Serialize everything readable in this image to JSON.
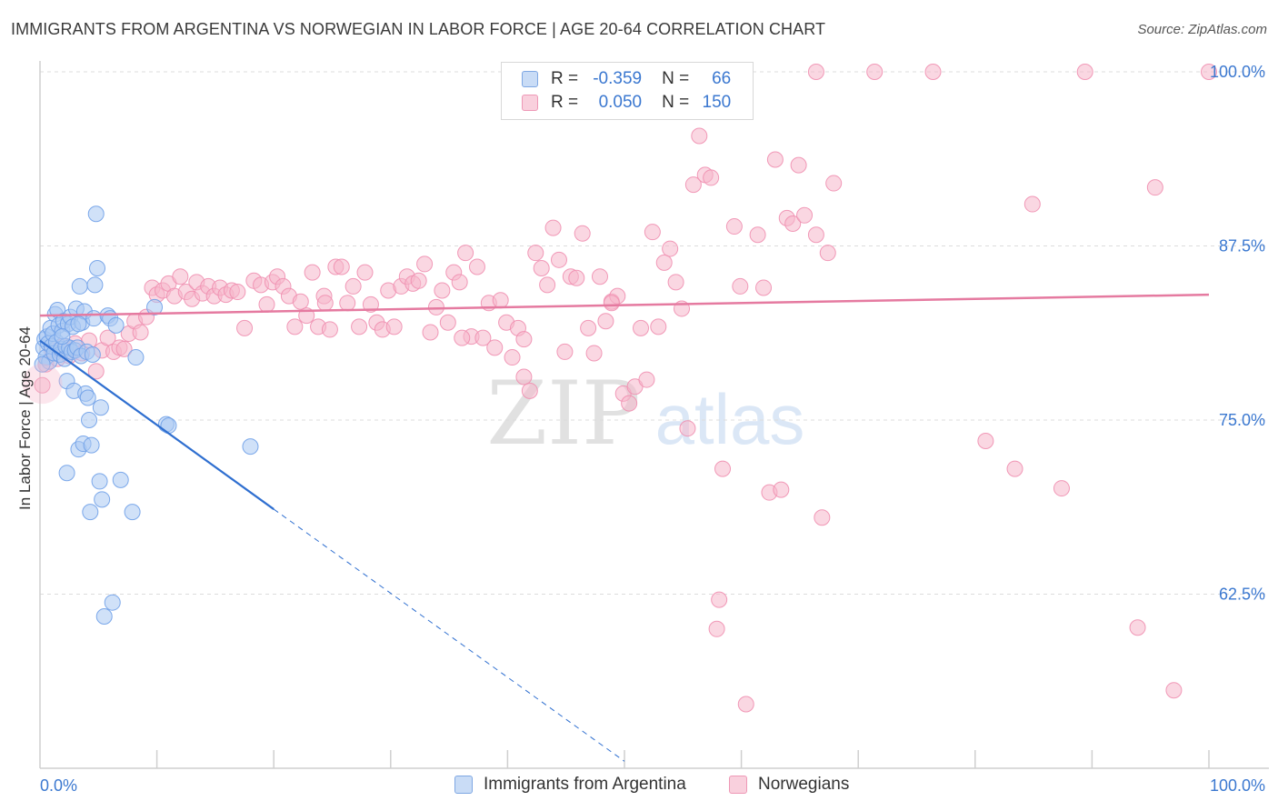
{
  "header": {
    "title": "IMMIGRANTS FROM ARGENTINA VS NORWEGIAN IN LABOR FORCE | AGE 20-64 CORRELATION CHART",
    "source": "Source: ZipAtlas.com"
  },
  "legend": {
    "rows": [
      {
        "r_label": "R =",
        "r_value": "-0.359",
        "n_label": "N =",
        "n_value": "66",
        "color": "#a9c8f2"
      },
      {
        "r_label": "R =",
        "r_value": "0.050",
        "n_label": "N =",
        "n_value": "150",
        "color": "#f5b7cb"
      }
    ]
  },
  "bottom_legend": {
    "items": [
      {
        "label": "Immigrants from Argentina",
        "color": "#a9c8f2"
      },
      {
        "label": "Norwegians",
        "color": "#f5b7cb"
      }
    ]
  },
  "watermark": {
    "zip": "ZIP",
    "atlas": "atlas"
  },
  "chart_data": {
    "type": "scatter",
    "title": "IMMIGRANTS FROM ARGENTINA VS NORWEGIAN IN LABOR FORCE | AGE 20-64 CORRELATION CHART",
    "xlabel": "",
    "ylabel": "In Labor Force | Age 20-64",
    "xlim": [
      0,
      100
    ],
    "ylim": [
      50,
      101
    ],
    "x_tick_labels": [
      "0.0%",
      "100.0%"
    ],
    "y_ticks": [
      62.5,
      75.0,
      87.5,
      100.0
    ],
    "y_tick_labels": [
      "62.5%",
      "75.0%",
      "87.5%",
      "100.0%"
    ],
    "grid": true,
    "series": [
      {
        "name": "Immigrants from Argentina",
        "color": "#6fa0e8",
        "fill": "#a9c8f2",
        "trend": {
          "x": [
            0,
            20
          ],
          "y": [
            80.7,
            68.6
          ],
          "dashed_to": [
            50,
            50.5
          ],
          "color": "#2f6fd0"
        },
        "points": [
          [
            0.3,
            80.2
          ],
          [
            0.4,
            80.8
          ],
          [
            0.5,
            79.5
          ],
          [
            0.6,
            81.0
          ],
          [
            0.7,
            80.5
          ],
          [
            0.8,
            79.2
          ],
          [
            0.9,
            81.6
          ],
          [
            1.0,
            80.3
          ],
          [
            1.1,
            81.2
          ],
          [
            1.2,
            79.8
          ],
          [
            1.3,
            82.6
          ],
          [
            1.4,
            80.6
          ],
          [
            1.5,
            82.9
          ],
          [
            1.6,
            81.8
          ],
          [
            1.7,
            79.7
          ],
          [
            1.8,
            80.1
          ],
          [
            1.9,
            81.4
          ],
          [
            2.0,
            82.1
          ],
          [
            2.1,
            79.4
          ],
          [
            2.2,
            80.3
          ],
          [
            2.3,
            77.8
          ],
          [
            2.4,
            81.9
          ],
          [
            2.5,
            80.2
          ],
          [
            2.6,
            82.4
          ],
          [
            2.7,
            79.9
          ],
          [
            2.8,
            81.7
          ],
          [
            2.9,
            77.1
          ],
          [
            3.0,
            80.0
          ],
          [
            3.1,
            83.0
          ],
          [
            3.2,
            80.2
          ],
          [
            3.3,
            72.9
          ],
          [
            3.4,
            84.6
          ],
          [
            3.5,
            79.6
          ],
          [
            3.6,
            82.0
          ],
          [
            3.7,
            73.3
          ],
          [
            3.8,
            82.8
          ],
          [
            3.9,
            76.9
          ],
          [
            4.0,
            79.9
          ],
          [
            4.1,
            76.6
          ],
          [
            4.2,
            75.0
          ],
          [
            4.3,
            68.4
          ],
          [
            4.4,
            73.2
          ],
          [
            4.5,
            79.7
          ],
          [
            4.6,
            82.3
          ],
          [
            4.7,
            84.7
          ],
          [
            4.8,
            89.8
          ],
          [
            4.9,
            85.9
          ],
          [
            5.1,
            70.6
          ],
          [
            5.2,
            75.9
          ],
          [
            5.3,
            69.3
          ],
          [
            5.5,
            60.9
          ],
          [
            5.8,
            82.5
          ],
          [
            6.0,
            82.3
          ],
          [
            6.2,
            61.9
          ],
          [
            6.5,
            81.8
          ],
          [
            6.9,
            70.7
          ],
          [
            7.9,
            68.4
          ],
          [
            8.2,
            79.5
          ],
          [
            9.8,
            83.1
          ],
          [
            10.8,
            74.7
          ],
          [
            11.0,
            74.6
          ],
          [
            18.0,
            73.1
          ],
          [
            2.3,
            71.2
          ],
          [
            1.9,
            81.0
          ],
          [
            3.3,
            81.9
          ],
          [
            0.2,
            79.0
          ]
        ]
      },
      {
        "name": "Norwegians",
        "color": "#ef8fb0",
        "fill": "#f5b7cb",
        "trend": {
          "x": [
            0,
            100
          ],
          "y": [
            82.5,
            84.0
          ],
          "color": "#e57aa0"
        },
        "points": [
          [
            0.2,
            77.5
          ],
          [
            0.5,
            79.0
          ],
          [
            1.0,
            80.0
          ],
          [
            1.5,
            79.4
          ],
          [
            2.0,
            80.3
          ],
          [
            2.5,
            79.6
          ],
          [
            3.0,
            80.5
          ],
          [
            3.6,
            79.8
          ],
          [
            4.2,
            80.7
          ],
          [
            4.8,
            78.5
          ],
          [
            5.3,
            80.0
          ],
          [
            5.8,
            80.9
          ],
          [
            6.3,
            79.9
          ],
          [
            6.8,
            80.2
          ],
          [
            7.2,
            80.1
          ],
          [
            7.6,
            81.2
          ],
          [
            8.1,
            82.1
          ],
          [
            8.6,
            81.3
          ],
          [
            9.1,
            82.4
          ],
          [
            9.6,
            84.5
          ],
          [
            10.0,
            84.0
          ],
          [
            10.5,
            84.3
          ],
          [
            11.0,
            84.8
          ],
          [
            11.5,
            83.9
          ],
          [
            12.0,
            85.3
          ],
          [
            12.5,
            84.2
          ],
          [
            13.0,
            83.7
          ],
          [
            13.4,
            84.9
          ],
          [
            13.9,
            84.1
          ],
          [
            14.4,
            84.6
          ],
          [
            14.9,
            83.9
          ],
          [
            15.4,
            84.5
          ],
          [
            15.9,
            84.0
          ],
          [
            16.4,
            84.3
          ],
          [
            16.9,
            84.2
          ],
          [
            17.5,
            81.6
          ],
          [
            18.3,
            85.0
          ],
          [
            18.9,
            84.7
          ],
          [
            19.4,
            83.3
          ],
          [
            19.9,
            84.9
          ],
          [
            20.3,
            85.3
          ],
          [
            20.8,
            84.6
          ],
          [
            21.3,
            83.9
          ],
          [
            21.8,
            81.7
          ],
          [
            22.3,
            83.5
          ],
          [
            22.8,
            82.5
          ],
          [
            23.3,
            85.6
          ],
          [
            23.8,
            81.7
          ],
          [
            24.3,
            83.9
          ],
          [
            24.8,
            81.5
          ],
          [
            25.3,
            86.0
          ],
          [
            25.8,
            86.0
          ],
          [
            26.3,
            83.4
          ],
          [
            26.8,
            84.6
          ],
          [
            27.3,
            81.7
          ],
          [
            27.8,
            85.6
          ],
          [
            28.3,
            83.3
          ],
          [
            28.8,
            82.0
          ],
          [
            29.3,
            81.5
          ],
          [
            29.8,
            84.3
          ],
          [
            30.3,
            81.7
          ],
          [
            30.9,
            84.6
          ],
          [
            31.4,
            85.3
          ],
          [
            31.9,
            84.8
          ],
          [
            32.4,
            85.0
          ],
          [
            32.9,
            86.2
          ],
          [
            33.4,
            81.3
          ],
          [
            33.9,
            83.1
          ],
          [
            34.4,
            84.3
          ],
          [
            34.9,
            82.0
          ],
          [
            35.4,
            85.6
          ],
          [
            35.9,
            84.9
          ],
          [
            36.4,
            87.0
          ],
          [
            36.9,
            81.0
          ],
          [
            37.4,
            86.0
          ],
          [
            37.9,
            80.9
          ],
          [
            38.4,
            83.4
          ],
          [
            38.9,
            80.2
          ],
          [
            39.4,
            83.6
          ],
          [
            39.9,
            82.0
          ],
          [
            40.4,
            79.5
          ],
          [
            40.9,
            81.6
          ],
          [
            41.4,
            78.1
          ],
          [
            41.9,
            77.1
          ],
          [
            42.4,
            87.0
          ],
          [
            42.9,
            85.9
          ],
          [
            43.4,
            84.7
          ],
          [
            43.9,
            88.8
          ],
          [
            44.4,
            86.5
          ],
          [
            44.9,
            79.9
          ],
          [
            45.4,
            85.3
          ],
          [
            45.9,
            85.2
          ],
          [
            46.4,
            88.4
          ],
          [
            46.9,
            81.6
          ],
          [
            47.4,
            79.8
          ],
          [
            47.9,
            85.3
          ],
          [
            48.4,
            82.1
          ],
          [
            48.9,
            83.5
          ],
          [
            49.4,
            83.9
          ],
          [
            49.9,
            76.9
          ],
          [
            50.4,
            76.2
          ],
          [
            50.9,
            77.4
          ],
          [
            51.4,
            81.6
          ],
          [
            51.9,
            77.9
          ],
          [
            52.4,
            88.5
          ],
          [
            52.9,
            81.7
          ],
          [
            53.4,
            86.3
          ],
          [
            53.9,
            87.3
          ],
          [
            54.4,
            84.9
          ],
          [
            54.9,
            83.0
          ],
          [
            55.4,
            74.4
          ],
          [
            55.9,
            91.9
          ],
          [
            56.4,
            95.4
          ],
          [
            56.9,
            92.6
          ],
          [
            57.4,
            92.4
          ],
          [
            57.9,
            60.0
          ],
          [
            58.1,
            62.1
          ],
          [
            58.4,
            71.5
          ],
          [
            59.4,
            88.9
          ],
          [
            59.9,
            84.6
          ],
          [
            60.4,
            54.6
          ],
          [
            61.4,
            88.3
          ],
          [
            61.9,
            84.5
          ],
          [
            62.4,
            69.8
          ],
          [
            62.9,
            93.7
          ],
          [
            63.4,
            70.0
          ],
          [
            63.9,
            89.5
          ],
          [
            64.4,
            89.1
          ],
          [
            64.9,
            93.3
          ],
          [
            65.4,
            89.7
          ],
          [
            66.4,
            88.3
          ],
          [
            66.9,
            68.0
          ],
          [
            67.4,
            87.0
          ],
          [
            67.9,
            92.0
          ],
          [
            71.4,
            100.0
          ],
          [
            76.4,
            100.0
          ],
          [
            80.9,
            73.5
          ],
          [
            83.4,
            71.5
          ],
          [
            84.9,
            90.5
          ],
          [
            87.4,
            70.1
          ],
          [
            89.4,
            100.0
          ],
          [
            93.9,
            60.1
          ],
          [
            95.4,
            91.7
          ],
          [
            97.0,
            55.6
          ],
          [
            100.0,
            100.0
          ],
          [
            66.4,
            100.0
          ],
          [
            41.4,
            80.8
          ],
          [
            36.1,
            80.9
          ],
          [
            48.9,
            83.4
          ],
          [
            24.4,
            83.4
          ]
        ]
      }
    ]
  }
}
